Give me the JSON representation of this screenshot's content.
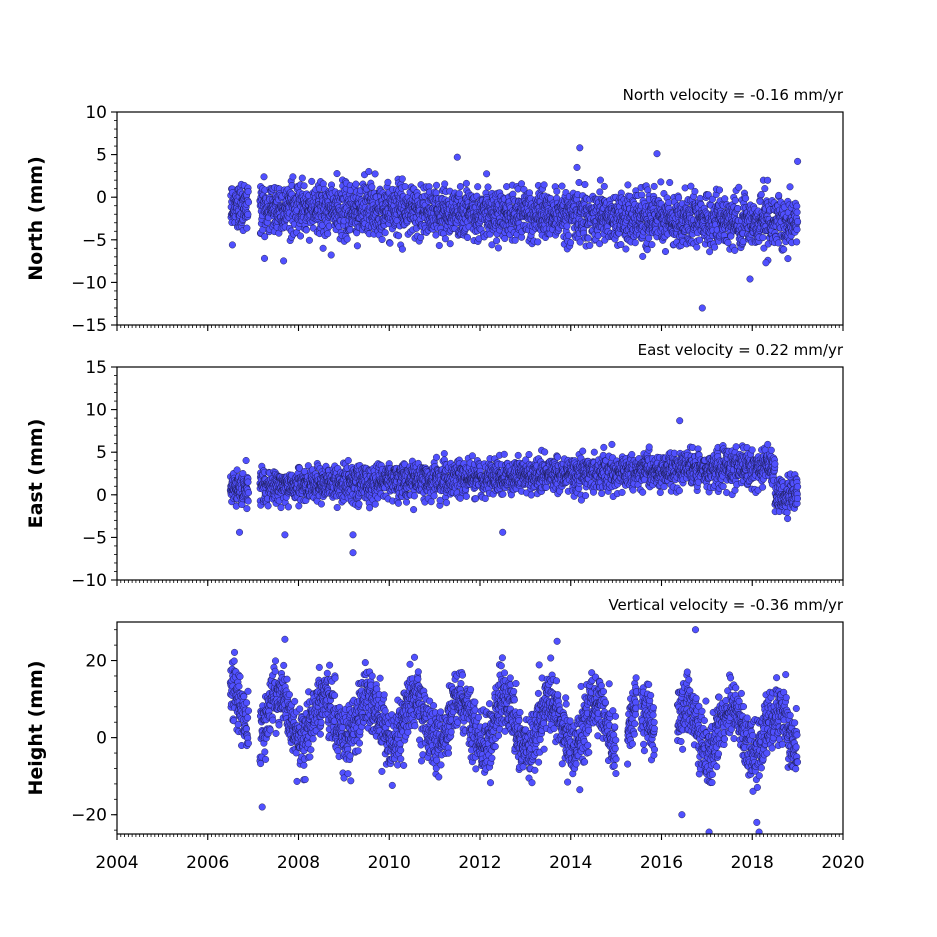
{
  "chart_data": [
    {
      "type": "scatter",
      "annotation": "North velocity = -0.16 mm/yr",
      "ylabel": "North (mm)",
      "xlim": [
        2004,
        2020
      ],
      "ylim": [
        -15,
        10
      ],
      "yticks": [
        10,
        5,
        0,
        -5,
        -10,
        -15
      ],
      "ytick_labels": [
        "10",
        "5",
        "0",
        "−5",
        "−10",
        "−15"
      ],
      "trend_per_year": -0.16,
      "y_at_start": -1.0,
      "noise_sd": 1.5,
      "data_start": 2006.5,
      "data_end": 2019.0,
      "gaps": [
        [
          2006.9,
          2007.15
        ]
      ],
      "outliers": [
        [
          2014.2,
          5.8
        ],
        [
          2011.5,
          4.7
        ],
        [
          2015.9,
          5.1
        ],
        [
          2016.9,
          -13.0
        ],
        [
          2017.95,
          -9.6
        ],
        [
          2018.3,
          -7.7
        ],
        [
          2019.0,
          4.2
        ]
      ],
      "marker_color": "#5050ff"
    },
    {
      "type": "scatter",
      "annotation": "East velocity = 0.22 mm/yr",
      "ylabel": "East (mm)",
      "xlim": [
        2004,
        2020
      ],
      "ylim": [
        -10,
        15
      ],
      "yticks": [
        15,
        10,
        5,
        0,
        -5,
        -10
      ],
      "ytick_labels": [
        "15",
        "10",
        "5",
        "0",
        "−5",
        "−10"
      ],
      "trend_per_year": 0.22,
      "y_at_start": 0.8,
      "noise_sd": 1.0,
      "data_start": 2006.5,
      "data_end": 2019.0,
      "gaps": [
        [
          2006.9,
          2007.15
        ]
      ],
      "offset_after": [
        2018.5,
        -3.5
      ],
      "outliers": [
        [
          2009.2,
          -6.8
        ],
        [
          2009.2,
          -4.7
        ],
        [
          2007.7,
          -4.7
        ],
        [
          2016.4,
          8.7
        ],
        [
          2012.5,
          -4.4
        ],
        [
          2006.7,
          -4.4
        ]
      ],
      "marker_color": "#5050ff"
    },
    {
      "type": "scatter",
      "annotation": "Vertical velocity = -0.36 mm/yr",
      "ylabel": "Height (mm)",
      "xlim": [
        2004,
        2020
      ],
      "ylim": [
        -25,
        30
      ],
      "yticks": [
        20,
        0,
        -20
      ],
      "ytick_labels": [
        "20",
        "0",
        "−20"
      ],
      "trend_per_year": -0.36,
      "y_at_start": 6.0,
      "noise_sd": 4.0,
      "seasonal_amplitude": 6.0,
      "data_start": 2006.5,
      "data_end": 2019.0,
      "gaps": [
        [
          2006.9,
          2007.15
        ],
        [
          2015.0,
          2015.25
        ],
        [
          2015.45,
          2015.55
        ],
        [
          2015.85,
          2016.35
        ]
      ],
      "outliers": [
        [
          2016.75,
          28.0
        ],
        [
          2007.7,
          25.5
        ],
        [
          2013.7,
          25.0
        ],
        [
          2007.2,
          -18.0
        ],
        [
          2016.45,
          -20.0
        ],
        [
          2017.05,
          -24.5
        ],
        [
          2018.1,
          -22.0
        ],
        [
          2018.15,
          -24.5
        ],
        [
          2014.2,
          -13.5
        ]
      ],
      "marker_color": "#5050ff"
    }
  ],
  "x_axis": {
    "ticks": [
      2004,
      2006,
      2008,
      2010,
      2012,
      2014,
      2016,
      2018,
      2020
    ],
    "tick_labels": [
      "2004",
      "2006",
      "2008",
      "2010",
      "2012",
      "2014",
      "2016",
      "2018",
      "2020"
    ]
  }
}
